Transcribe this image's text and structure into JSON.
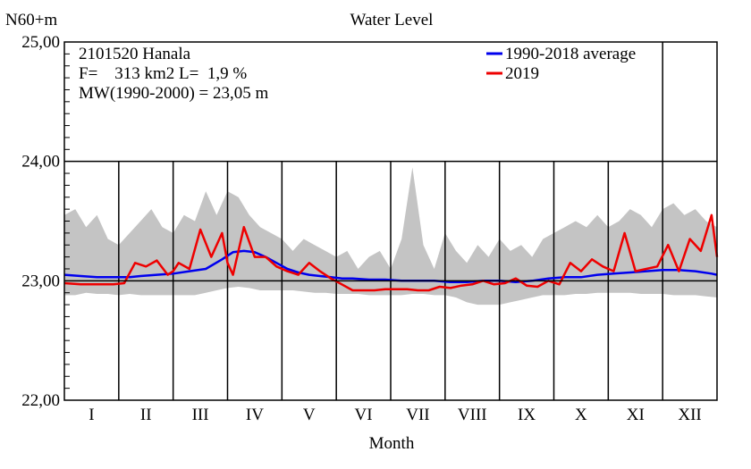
{
  "chart_data": {
    "type": "line",
    "title": "Water Level",
    "ylabel": "N60+m",
    "xlabel": "Month",
    "ylim": [
      22.0,
      25.0
    ],
    "y_ticks": [
      {
        "value": 22.0,
        "label": "22,00"
      },
      {
        "value": 23.0,
        "label": "23,00"
      },
      {
        "value": 24.0,
        "label": "24,00"
      },
      {
        "value": 25.0,
        "label": "25,00"
      }
    ],
    "categories": [
      "I",
      "II",
      "III",
      "IV",
      "V",
      "VI",
      "VII",
      "VIII",
      "IX",
      "X",
      "XI",
      "XII"
    ],
    "x_unit": "month (1.0 = start of January, 13.0 = end of December)",
    "xlim": [
      1.0,
      13.0
    ],
    "grid": true,
    "legend_position": "top-right",
    "reference_line": 23.0,
    "info_lines": [
      "2101520 Hanala",
      "F=    313 km2 L=  1,9 %",
      "MW(1990-2000) = 23,05 m"
    ],
    "colors": {
      "average": "#0000ee",
      "year": "#ee0000",
      "range": "#c4c4c4",
      "frame": "#000000"
    },
    "range_band": {
      "name": "",
      "x": [
        1.0,
        1.2,
        1.4,
        1.6,
        1.8,
        2.0,
        2.2,
        2.4,
        2.6,
        2.8,
        3.0,
        3.2,
        3.4,
        3.6,
        3.8,
        4.0,
        4.2,
        4.4,
        4.6,
        4.8,
        5.0,
        5.2,
        5.4,
        5.6,
        5.8,
        6.0,
        6.2,
        6.4,
        6.6,
        6.8,
        7.0,
        7.2,
        7.4,
        7.6,
        7.8,
        8.0,
        8.2,
        8.4,
        8.6,
        8.8,
        9.0,
        9.2,
        9.4,
        9.6,
        9.8,
        10.0,
        10.2,
        10.4,
        10.6,
        10.8,
        11.0,
        11.2,
        11.4,
        11.6,
        11.8,
        12.0,
        12.2,
        12.4,
        12.6,
        12.8,
        13.0
      ],
      "high": [
        23.55,
        23.6,
        23.45,
        23.55,
        23.35,
        23.3,
        23.4,
        23.5,
        23.6,
        23.45,
        23.4,
        23.55,
        23.5,
        23.75,
        23.55,
        23.75,
        23.7,
        23.55,
        23.45,
        23.4,
        23.35,
        23.25,
        23.35,
        23.3,
        23.25,
        23.2,
        23.25,
        23.1,
        23.2,
        23.25,
        23.1,
        23.35,
        23.95,
        23.3,
        23.1,
        23.4,
        23.25,
        23.15,
        23.3,
        23.2,
        23.35,
        23.25,
        23.3,
        23.2,
        23.35,
        23.4,
        23.45,
        23.5,
        23.45,
        23.55,
        23.45,
        23.5,
        23.6,
        23.55,
        23.45,
        23.6,
        23.65,
        23.55,
        23.6,
        23.5,
        23.45
      ],
      "low": [
        22.88,
        22.88,
        22.9,
        22.89,
        22.89,
        22.88,
        22.89,
        22.88,
        22.88,
        22.88,
        22.88,
        22.88,
        22.88,
        22.9,
        22.92,
        22.94,
        22.95,
        22.94,
        22.92,
        22.92,
        22.92,
        22.92,
        22.91,
        22.9,
        22.9,
        22.89,
        22.89,
        22.89,
        22.88,
        22.88,
        22.88,
        22.88,
        22.89,
        22.89,
        22.88,
        22.88,
        22.86,
        22.82,
        22.8,
        22.8,
        22.8,
        22.82,
        22.84,
        22.86,
        22.88,
        22.88,
        22.88,
        22.89,
        22.89,
        22.9,
        22.9,
        22.9,
        22.9,
        22.89,
        22.89,
        22.89,
        22.88,
        22.88,
        22.88,
        22.87,
        22.86
      ]
    },
    "series": [
      {
        "name": "1990-2018 average",
        "color": "#0000ee",
        "x": [
          1.0,
          1.3,
          1.6,
          1.9,
          2.2,
          2.4,
          2.7,
          3.0,
          3.3,
          3.6,
          3.9,
          4.1,
          4.3,
          4.5,
          4.7,
          4.9,
          5.1,
          5.3,
          5.5,
          5.7,
          5.9,
          6.1,
          6.3,
          6.6,
          6.9,
          7.2,
          7.5,
          7.8,
          8.1,
          8.4,
          8.7,
          9.0,
          9.3,
          9.6,
          9.9,
          10.2,
          10.5,
          10.8,
          11.1,
          11.4,
          11.7,
          12.0,
          12.3,
          12.6,
          12.9,
          13.0
        ],
        "y": [
          23.05,
          23.04,
          23.03,
          23.03,
          23.03,
          23.04,
          23.05,
          23.06,
          23.08,
          23.1,
          23.18,
          23.24,
          23.25,
          23.24,
          23.2,
          23.15,
          23.1,
          23.07,
          23.05,
          23.04,
          23.03,
          23.02,
          23.02,
          23.01,
          23.01,
          23.0,
          23.0,
          23.0,
          22.99,
          22.99,
          23.0,
          23.0,
          22.99,
          23.0,
          23.02,
          23.03,
          23.03,
          23.05,
          23.06,
          23.07,
          23.08,
          23.09,
          23.09,
          23.08,
          23.06,
          23.05
        ]
      },
      {
        "name": "2019",
        "color": "#ee0000",
        "x": [
          1.0,
          1.3,
          1.6,
          1.9,
          2.1,
          2.3,
          2.5,
          2.7,
          2.9,
          3.0,
          3.1,
          3.3,
          3.5,
          3.7,
          3.9,
          4.0,
          4.1,
          4.3,
          4.5,
          4.7,
          4.9,
          5.1,
          5.3,
          5.5,
          5.7,
          5.9,
          6.1,
          6.3,
          6.5,
          6.7,
          6.9,
          7.1,
          7.3,
          7.5,
          7.7,
          7.9,
          8.1,
          8.3,
          8.5,
          8.7,
          8.9,
          9.1,
          9.3,
          9.5,
          9.7,
          9.9,
          10.1,
          10.3,
          10.5,
          10.7,
          10.9,
          11.1,
          11.3,
          11.5,
          11.7,
          11.9,
          12.1,
          12.3,
          12.5,
          12.7,
          12.9,
          13.0
        ],
        "y": [
          22.98,
          22.97,
          22.97,
          22.97,
          22.98,
          23.15,
          23.12,
          23.17,
          23.05,
          23.08,
          23.15,
          23.1,
          23.43,
          23.2,
          23.4,
          23.15,
          23.05,
          23.45,
          23.2,
          23.2,
          23.12,
          23.08,
          23.05,
          23.15,
          23.08,
          23.02,
          22.97,
          22.92,
          22.92,
          22.92,
          22.93,
          22.93,
          22.93,
          22.92,
          22.92,
          22.95,
          22.94,
          22.96,
          22.97,
          23.0,
          22.97,
          22.98,
          23.02,
          22.96,
          22.95,
          23.0,
          22.97,
          23.15,
          23.08,
          23.18,
          23.12,
          23.08,
          23.4,
          23.08,
          23.1,
          23.12,
          23.3,
          23.08,
          23.35,
          23.25,
          23.55,
          23.2
        ]
      }
    ]
  }
}
